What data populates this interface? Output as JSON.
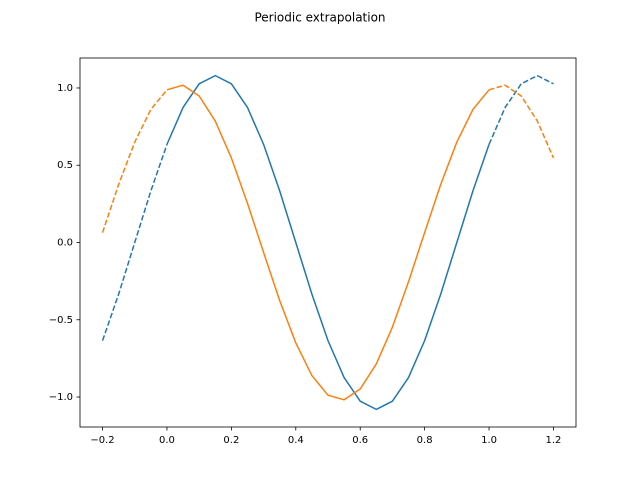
{
  "chart_data": {
    "type": "line",
    "title": "Periodic extrapolation",
    "series": [
      {
        "color": "#1f77b4",
        "linestyle": "dashed",
        "x": [
          -0.2,
          -0.15,
          -0.1,
          -0.05,
          0
        ],
        "values": [
          -0.635,
          -0.334,
          0,
          0.334,
          0.635
        ]
      },
      {
        "color": "#1f77b4",
        "linestyle": "solid",
        "x": [
          0,
          0.05,
          0.1,
          0.15,
          0.2,
          0.25,
          0.3,
          0.35,
          0.4,
          0.45,
          0.5,
          0.55,
          0.6,
          0.65,
          0.7,
          0.75,
          0.8,
          0.85,
          0.9,
          0.95,
          1.0
        ],
        "values": [
          0.635,
          0.874,
          1.027,
          1.08,
          1.027,
          0.874,
          0.635,
          0.334,
          0,
          -0.334,
          -0.635,
          -0.874,
          -1.027,
          -1.08,
          -1.027,
          -0.874,
          -0.635,
          -0.334,
          0,
          0.334,
          0.635
        ]
      },
      {
        "color": "#1f77b4",
        "linestyle": "dashed",
        "x": [
          1.0,
          1.05,
          1.1,
          1.15,
          1.2
        ],
        "values": [
          0.635,
          0.874,
          1.027,
          1.08,
          1.027
        ]
      },
      {
        "color": "#ff7f0e",
        "linestyle": "dashed",
        "x": [
          -0.2,
          -0.15,
          -0.1,
          -0.05,
          0
        ],
        "values": [
          0.064,
          0.376,
          0.65,
          0.861,
          0.988
        ]
      },
      {
        "color": "#ff7f0e",
        "linestyle": "solid",
        "x": [
          0,
          0.05,
          0.1,
          0.15,
          0.2,
          0.25,
          0.3,
          0.35,
          0.4,
          0.45,
          0.5,
          0.55,
          0.6,
          0.65,
          0.7,
          0.75,
          0.8,
          0.85,
          0.9,
          0.95,
          1.0
        ],
        "values": [
          0.988,
          1.018,
          0.948,
          0.786,
          0.547,
          0.254,
          -0.064,
          -0.376,
          -0.65,
          -0.861,
          -0.988,
          -1.018,
          -0.948,
          -0.786,
          -0.547,
          -0.254,
          0.064,
          0.376,
          0.65,
          0.861,
          0.988
        ]
      },
      {
        "color": "#ff7f0e",
        "linestyle": "dashed",
        "x": [
          1.0,
          1.05,
          1.1,
          1.15,
          1.2
        ],
        "values": [
          0.988,
          1.018,
          0.948,
          0.786,
          0.547
        ]
      }
    ],
    "xlim": [
      -0.27,
      1.27
    ],
    "ylim": [
      -1.194,
      1.194
    ],
    "xticks": [
      {
        "value": -0.2,
        "label": "−0.2"
      },
      {
        "value": 0,
        "label": "0.0"
      },
      0.2,
      0.4,
      0.6,
      0.8,
      {
        "value": 1.0,
        "label": "1.0"
      },
      1.2
    ],
    "yticks": [
      {
        "value": -1.0,
        "label": "−1.0"
      },
      {
        "value": -0.5,
        "label": "−0.5"
      },
      {
        "value": 0,
        "label": "0.0"
      },
      0.5,
      {
        "value": 1.0,
        "label": "1.0"
      }
    ],
    "grid": false
  }
}
